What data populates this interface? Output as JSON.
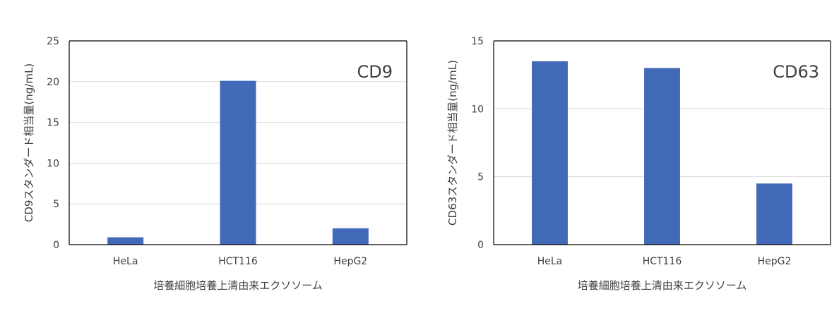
{
  "chart_data": [
    {
      "type": "bar",
      "annotation": "CD9",
      "categories": [
        "HeLa",
        "HCT116",
        "HepG2"
      ],
      "values": [
        0.9,
        20.1,
        2.0
      ],
      "xlabel": "培養細胞培養上清由来エクソソーム",
      "ylabel": "CD9スタンダード相当量(ng/mL)",
      "ylim": [
        0,
        25
      ],
      "yticks": [
        0,
        5,
        10,
        15,
        20,
        25
      ],
      "grid": true,
      "bar_color": "#4169B8"
    },
    {
      "type": "bar",
      "annotation": "CD63",
      "categories": [
        "HeLa",
        "HCT116",
        "HepG2"
      ],
      "values": [
        13.5,
        13.0,
        4.5
      ],
      "xlabel": "培養細胞培養上清由来エクソソーム",
      "ylabel": "CD63スタンダード相当量(ng/mL)",
      "ylim": [
        0,
        15
      ],
      "yticks": [
        0,
        5,
        10,
        15
      ],
      "grid": true,
      "bar_color": "#4169B8"
    }
  ]
}
